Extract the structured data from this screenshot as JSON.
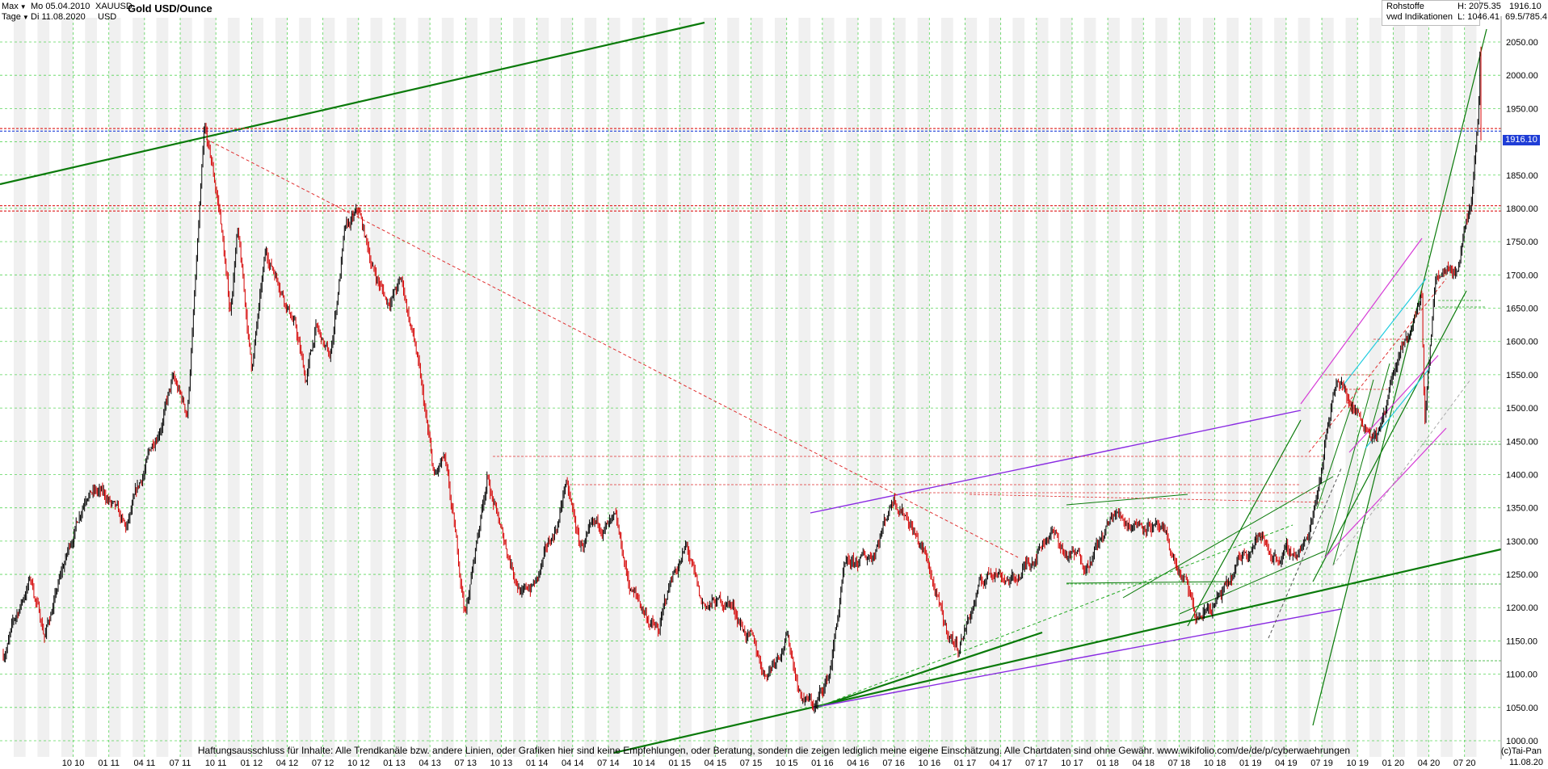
{
  "header": {
    "range_label": "Max",
    "interval_label": "Tage",
    "start_date": "Mo 05.04.2010",
    "end_date": "Di 11.08.2020",
    "symbol": "XAUUSD",
    "currency": "USD",
    "title": "Gold USD/Ounce",
    "category": "Rohstoffe",
    "source": "vwd Indikationen",
    "high": "H: 2075.35",
    "low": "L: 1046.41",
    "last": "1916.10",
    "ratio": "69.5/785.4"
  },
  "footer": {
    "disclaimer": "Haftungsausschluss für Inhalte: Alle Trendkanäle bzw. andere Linien, oder Grafiken hier sind keine Empfehlungen, oder Beratung, sondern die zeigen lediglich meine eigene Einschätzung. Alle Chartdaten sind ohne Gewähr.  www.wikifolio.com/de/de/p/cyberwaehrungen",
    "credit": "(c)Tai-Pan",
    "last_date": "11.08.20"
  },
  "colors": {
    "grid": "#33cc33",
    "candle_up": "#000000",
    "candle_down": "#d40000",
    "trend_dark_green": "#0a7a0a",
    "trend_purple": "#8a2be2",
    "trend_magenta": "#d63cd6",
    "trend_cyan": "#22cce0",
    "resistance_red": "#e03030",
    "price_line_blue": "#1f3dd6"
  },
  "chart_data": {
    "type": "candlestick",
    "title": "Gold USD/Ounce",
    "ylim": [
      985,
      2075
    ],
    "y_ticks": [
      1000,
      1050,
      1100,
      1150,
      1200,
      1250,
      1300,
      1350,
      1400,
      1450,
      1500,
      1550,
      1600,
      1650,
      1700,
      1750,
      1800,
      1850,
      1900,
      1950,
      2000,
      2050
    ],
    "x_ticks": [
      "10 10",
      "01 11",
      "04 11",
      "07 11",
      "10 11",
      "01 12",
      "04 12",
      "07 12",
      "10 12",
      "01 13",
      "04 13",
      "07 13",
      "10 13",
      "01 14",
      "04 14",
      "07 14",
      "10 14",
      "01 15",
      "04 15",
      "07 15",
      "10 15",
      "01 16",
      "04 16",
      "07 16",
      "10 16",
      "01 17",
      "04 17",
      "07 17",
      "10 17",
      "01 18",
      "04 18",
      "07 18",
      "10 18",
      "01 19",
      "04 19",
      "07 19",
      "10 19",
      "01 20",
      "04 20",
      "07 20"
    ],
    "price_path": [
      [
        "2010.26",
        1130
      ],
      [
        "2010.45",
        1245
      ],
      [
        "2010.55",
        1160
      ],
      [
        "2010.85",
        1385
      ],
      [
        "2011.0",
        1360
      ],
      [
        "2011.12",
        1310
      ],
      [
        "2011.3",
        1440
      ],
      [
        "2011.45",
        1540
      ],
      [
        "2011.55",
        1490
      ],
      [
        "2011.67",
        1910
      ],
      [
        "2011.72",
        1860
      ],
      [
        "2011.78",
        1790
      ],
      [
        "2011.85",
        1640
      ],
      [
        "2011.9",
        1770
      ],
      [
        "2012.0",
        1560
      ],
      [
        "2012.1",
        1730
      ],
      [
        "2012.2",
        1690
      ],
      [
        "2012.3",
        1630
      ],
      [
        "2012.38",
        1540
      ],
      [
        "2012.45",
        1620
      ],
      [
        "2012.55",
        1570
      ],
      [
        "2012.65",
        1760
      ],
      [
        "2012.75",
        1790
      ],
      [
        "2012.85",
        1710
      ],
      [
        "2012.95",
        1660
      ],
      [
        "2013.05",
        1690
      ],
      [
        "2013.15",
        1590
      ],
      [
        "2013.28",
        1390
      ],
      [
        "2013.35",
        1420
      ],
      [
        "2013.5",
        1190
      ],
      [
        "2013.65",
        1400
      ],
      [
        "2013.75",
        1310
      ],
      [
        "2013.9",
        1220
      ],
      [
        "2014.0",
        1240
      ],
      [
        "2014.15",
        1330
      ],
      [
        "2014.2",
        1390
      ],
      [
        "2014.3",
        1290
      ],
      [
        "2014.45",
        1320
      ],
      [
        "2014.55",
        1320
      ],
      [
        "2014.65",
        1230
      ],
      [
        "2014.85",
        1160
      ],
      [
        "2014.95",
        1250
      ],
      [
        "2015.05",
        1290
      ],
      [
        "2015.15",
        1200
      ],
      [
        "2015.35",
        1210
      ],
      [
        "2015.5",
        1150
      ],
      [
        "2015.6",
        1100
      ],
      [
        "2015.75",
        1160
      ],
      [
        "2015.85",
        1070
      ],
      [
        "2015.95",
        1050
      ],
      [
        "2016.05",
        1100
      ],
      [
        "2016.15",
        1250
      ],
      [
        "2016.35",
        1280
      ],
      [
        "2016.5",
        1370
      ],
      [
        "2016.6",
        1340
      ],
      [
        "2016.75",
        1260
      ],
      [
        "2016.85",
        1170
      ],
      [
        "2016.95",
        1140
      ],
      [
        "2017.1",
        1230
      ],
      [
        "2017.2",
        1260
      ],
      [
        "2017.35",
        1240
      ],
      [
        "2017.45",
        1270
      ],
      [
        "2017.6",
        1320
      ],
      [
        "2017.7",
        1280
      ],
      [
        "2017.85",
        1270
      ],
      [
        "2017.95",
        1300
      ],
      [
        "2018.05",
        1340
      ],
      [
        "2018.15",
        1330
      ],
      [
        "2018.3",
        1330
      ],
      [
        "2018.4",
        1300
      ],
      [
        "2018.55",
        1230
      ],
      [
        "2018.62",
        1180
      ],
      [
        "2018.72",
        1200
      ],
      [
        "2018.85",
        1230
      ],
      [
        "2018.95",
        1280
      ],
      [
        "2019.05",
        1310
      ],
      [
        "2019.15",
        1280
      ],
      [
        "2019.3",
        1280
      ],
      [
        "2019.4",
        1300
      ],
      [
        "2019.5",
        1420
      ],
      [
        "2019.6",
        1550
      ],
      [
        "2019.7",
        1510
      ],
      [
        "2019.8",
        1480
      ],
      [
        "2019.9",
        1460
      ],
      [
        "2020.0",
        1550
      ],
      [
        "2020.1",
        1600
      ],
      [
        "2020.2",
        1670
      ],
      [
        "2020.22",
        1480
      ],
      [
        "2020.3",
        1700
      ],
      [
        "2020.4",
        1730
      ],
      [
        "2020.45",
        1710
      ],
      [
        "2020.5",
        1780
      ],
      [
        "2020.55",
        1810
      ],
      [
        "2020.6",
        1960
      ],
      [
        "2020.61",
        2060
      ],
      [
        "2020.615",
        1916
      ]
    ],
    "horizontal_levels": [
      {
        "value": 1920,
        "style": "dotted",
        "color": "#e03030"
      },
      {
        "value": 1916.1,
        "style": "dotted",
        "color": "#1f3dd6"
      },
      {
        "value": 1804,
        "style": "dotted",
        "color": "#e03030"
      },
      {
        "value": 1796,
        "style": "dotted",
        "color": "#e03030"
      }
    ]
  }
}
